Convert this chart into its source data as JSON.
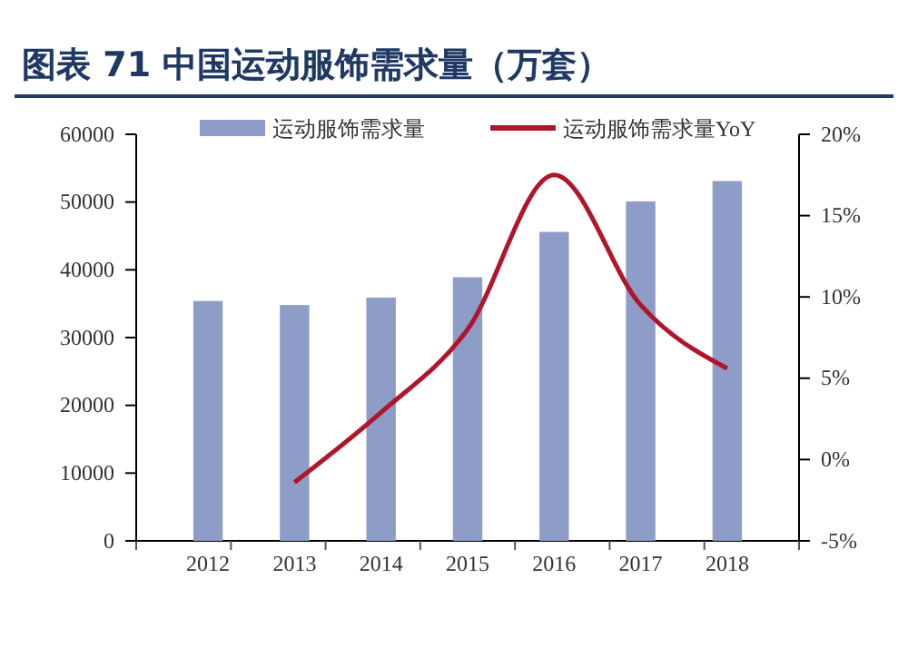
{
  "chart_data": {
    "type": "bar",
    "title": "图表 71   中国运动服饰需求量（万套）",
    "categories": [
      "2012",
      "2013",
      "2014",
      "2015",
      "2016",
      "2017",
      "2018"
    ],
    "series": [
      {
        "name": "运动服饰需求量",
        "color": "#8e9cc8",
        "values": [
          35400,
          34800,
          35900,
          38900,
          45600,
          50100,
          53100
        ]
      },
      {
        "name": "运动服饰需求量YoY",
        "type": "line",
        "axis": "y2",
        "color": "#b0152a",
        "values": [
          null,
          -1.4,
          2.9,
          8.0,
          17.5,
          9.5,
          5.6
        ]
      }
    ],
    "ylim": [
      0,
      60000
    ],
    "yticks": [
      0,
      10000,
      20000,
      30000,
      40000,
      50000,
      60000
    ],
    "y2lim": [
      -5,
      20
    ],
    "y2ticks": [
      {
        "value": -5,
        "label": "-5%"
      },
      {
        "value": 0,
        "label": "0%"
      },
      {
        "value": 5,
        "label": "5%"
      },
      {
        "value": 10,
        "label": "10%"
      },
      {
        "value": 15,
        "label": "15%"
      },
      {
        "value": 20,
        "label": "20%"
      }
    ],
    "legend": "top",
    "grid": false
  }
}
